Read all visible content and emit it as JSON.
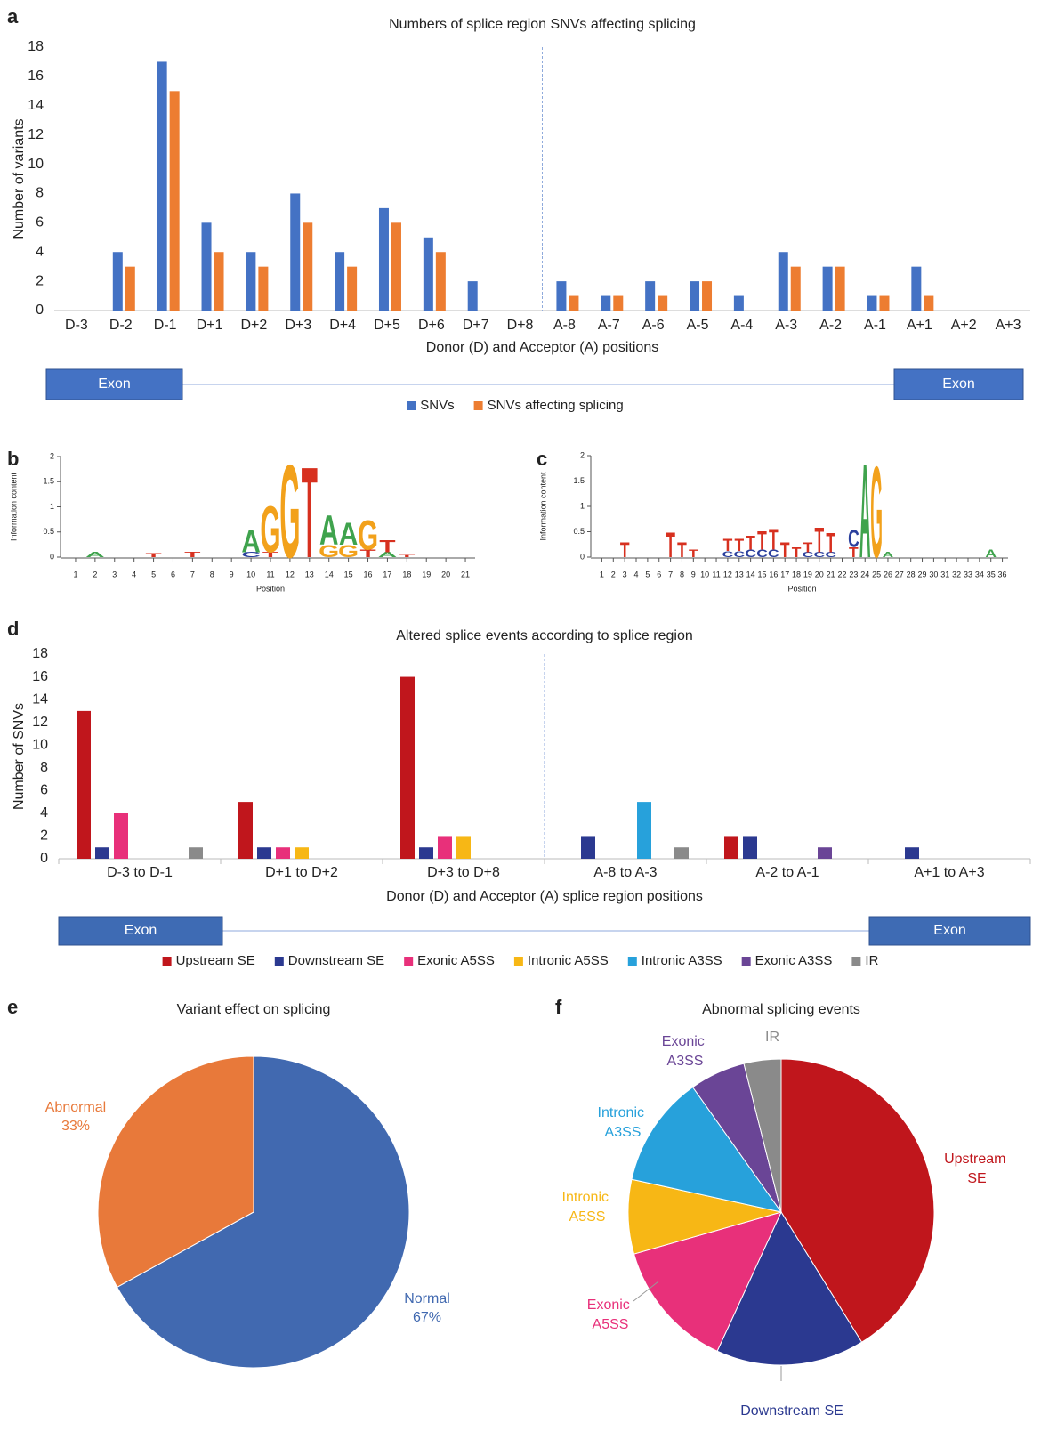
{
  "chart_data": [
    {
      "panel": "a",
      "type": "bar",
      "title": "Numbers of splice region SNVs affecting splicing",
      "xlabel": "Donor (D) and Acceptor (A) positions",
      "ylabel": "Number of variants",
      "categories": [
        "D-3",
        "D-2",
        "D-1",
        "D+1",
        "D+2",
        "D+3",
        "D+4",
        "D+5",
        "D+6",
        "D+7",
        "D+8",
        "A-8",
        "A-7",
        "A-6",
        "A-5",
        "A-4",
        "A-3",
        "A-2",
        "A-1",
        "A+1",
        "A+2",
        "A+3"
      ],
      "series": [
        {
          "name": "SNVs",
          "color": "#4472c4",
          "values": [
            0,
            4,
            17,
            6,
            4,
            8,
            4,
            7,
            5,
            2,
            0,
            2,
            1,
            2,
            2,
            1,
            4,
            3,
            1,
            3,
            0,
            0
          ]
        },
        {
          "name": "SNVs affecting splicing",
          "color": "#ed7d31",
          "values": [
            0,
            3,
            15,
            4,
            3,
            6,
            3,
            6,
            4,
            0,
            0,
            1,
            1,
            1,
            2,
            0,
            3,
            3,
            1,
            1,
            0,
            0
          ]
        }
      ],
      "ylim": [
        0,
        18
      ],
      "yticks": [
        0,
        2,
        4,
        6,
        8,
        10,
        12,
        14,
        16,
        18
      ],
      "exon_labels": [
        "Exon",
        "Exon"
      ]
    },
    {
      "panel": "b",
      "type": "logo",
      "xlabel": "Position",
      "ylabel": "Information content",
      "xlim": [
        0.5,
        21.5
      ],
      "xticks": [
        1,
        2,
        3,
        4,
        5,
        6,
        7,
        8,
        9,
        10,
        11,
        12,
        13,
        14,
        15,
        16,
        17,
        18,
        19,
        20,
        21
      ],
      "ylim": [
        0,
        2
      ],
      "yticks": [
        0,
        0.5,
        1,
        1.5,
        2
      ],
      "letter_colors": {
        "A": "#3fa34d",
        "C": "#2a3f9d",
        "G": "#f2a11b",
        "T": "#d7301f"
      },
      "letters": [
        {
          "position": 2,
          "letter": "A",
          "height": 0.1
        },
        {
          "position": 5,
          "letter": "T",
          "height": 0.08
        },
        {
          "position": 7,
          "letter": "T",
          "height": 0.1
        },
        {
          "position": 10,
          "letter": "C",
          "height": 0.1
        },
        {
          "position": 10,
          "letter": "A",
          "height": 0.45
        },
        {
          "position": 11,
          "letter": "T",
          "height": 0.1
        },
        {
          "position": 11,
          "letter": "G",
          "height": 0.95
        },
        {
          "position": 12,
          "letter": "G",
          "height": 1.9
        },
        {
          "position": 13,
          "letter": "T",
          "height": 1.85
        },
        {
          "position": 14,
          "letter": "G",
          "height": 0.25
        },
        {
          "position": 14,
          "letter": "A",
          "height": 0.6
        },
        {
          "position": 15,
          "letter": "G",
          "height": 0.25
        },
        {
          "position": 15,
          "letter": "A",
          "height": 0.45
        },
        {
          "position": 16,
          "letter": "T",
          "height": 0.15
        },
        {
          "position": 16,
          "letter": "G",
          "height": 0.6
        },
        {
          "position": 17,
          "letter": "A",
          "height": 0.1
        },
        {
          "position": 17,
          "letter": "T",
          "height": 0.25
        },
        {
          "position": 18,
          "letter": "T",
          "height": 0.05
        }
      ]
    },
    {
      "panel": "c",
      "type": "logo",
      "xlabel": "Position",
      "ylabel": "Information content",
      "xlim": [
        0.5,
        36.5
      ],
      "xticks": [
        1,
        2,
        3,
        4,
        5,
        6,
        7,
        8,
        9,
        10,
        11,
        12,
        13,
        14,
        15,
        16,
        17,
        18,
        19,
        20,
        21,
        22,
        23,
        24,
        25,
        26,
        27,
        28,
        29,
        30,
        31,
        32,
        33,
        34,
        35,
        36
      ],
      "ylim": [
        0,
        2
      ],
      "yticks": [
        0,
        0.5,
        1,
        1.5,
        2
      ],
      "letter_colors": {
        "A": "#3fa34d",
        "C": "#2a3f9d",
        "G": "#f2a11b",
        "T": "#d7301f"
      },
      "letters": [
        {
          "position": 3,
          "letter": "T",
          "height": 0.3
        },
        {
          "position": 7,
          "letter": "T",
          "height": 0.5
        },
        {
          "position": 8,
          "letter": "T",
          "height": 0.3
        },
        {
          "position": 9,
          "letter": "T",
          "height": 0.15
        },
        {
          "position": 12,
          "letter": "C",
          "height": 0.12
        },
        {
          "position": 12,
          "letter": "T",
          "height": 0.25
        },
        {
          "position": 13,
          "letter": "C",
          "height": 0.12
        },
        {
          "position": 13,
          "letter": "T",
          "height": 0.25
        },
        {
          "position": 14,
          "letter": "C",
          "height": 0.15
        },
        {
          "position": 14,
          "letter": "T",
          "height": 0.28
        },
        {
          "position": 15,
          "letter": "C",
          "height": 0.15
        },
        {
          "position": 15,
          "letter": "T",
          "height": 0.38
        },
        {
          "position": 16,
          "letter": "C",
          "height": 0.15
        },
        {
          "position": 16,
          "letter": "T",
          "height": 0.42
        },
        {
          "position": 17,
          "letter": "T",
          "height": 0.3
        },
        {
          "position": 18,
          "letter": "T",
          "height": 0.2
        },
        {
          "position": 19,
          "letter": "C",
          "height": 0.1
        },
        {
          "position": 19,
          "letter": "T",
          "height": 0.2
        },
        {
          "position": 20,
          "letter": "C",
          "height": 0.1
        },
        {
          "position": 20,
          "letter": "T",
          "height": 0.5
        },
        {
          "position": 21,
          "letter": "C",
          "height": 0.1
        },
        {
          "position": 21,
          "letter": "T",
          "height": 0.4
        },
        {
          "position": 23,
          "letter": "T",
          "height": 0.2
        },
        {
          "position": 23,
          "letter": "C",
          "height": 0.35
        },
        {
          "position": 24,
          "letter": "A",
          "height": 1.9
        },
        {
          "position": 25,
          "letter": "G",
          "height": 1.85
        },
        {
          "position": 26,
          "letter": "A",
          "height": 0.1
        },
        {
          "position": 35,
          "letter": "A",
          "height": 0.15
        }
      ]
    },
    {
      "panel": "d",
      "type": "bar",
      "title": "Altered splice events according to splice region",
      "xlabel": "Donor (D) and Acceptor (A) splice region positions",
      "ylabel": "Number of SNVs",
      "categories": [
        "D-3 to D-1",
        "D+1 to D+2",
        "D+3 to D+8",
        "A-8 to A-3",
        "A-2 to A-1",
        "A+1 to A+3"
      ],
      "series": [
        {
          "name": "Upstream SE",
          "color": "#c0161c",
          "values": [
            13,
            5,
            16,
            0,
            2,
            0
          ]
        },
        {
          "name": "Downstream SE",
          "color": "#2b3990",
          "values": [
            1,
            1,
            1,
            2,
            2,
            1
          ]
        },
        {
          "name": "Exonic A5SS",
          "color": "#e8307a",
          "values": [
            4,
            1,
            2,
            0,
            0,
            0
          ]
        },
        {
          "name": "Intronic A5SS",
          "color": "#f7b715",
          "values": [
            0,
            1,
            2,
            0,
            0,
            0
          ]
        },
        {
          "name": "Intronic A3SS",
          "color": "#27a1db",
          "values": [
            0,
            0,
            0,
            5,
            0,
            0
          ]
        },
        {
          "name": "Exonic A3SS",
          "color": "#6a4596",
          "values": [
            0,
            0,
            0,
            0,
            1,
            0
          ]
        },
        {
          "name": "IR",
          "color": "#8a8a8a",
          "values": [
            1,
            0,
            0,
            1,
            0,
            0
          ]
        }
      ],
      "ylim": [
        0,
        18
      ],
      "yticks": [
        0,
        2,
        4,
        6,
        8,
        10,
        12,
        14,
        16,
        18
      ],
      "exon_labels": [
        "Exon",
        "Exon"
      ]
    },
    {
      "panel": "e",
      "type": "pie",
      "title": "Variant effect on splicing",
      "categories": [
        "Normal",
        "Abnormal"
      ],
      "values": [
        67,
        33
      ],
      "value_labels": [
        "67%",
        "33%"
      ],
      "colors": [
        "#4169b0",
        "#e8793a"
      ]
    },
    {
      "panel": "f",
      "type": "pie",
      "title": "Abnormal splicing events",
      "categories": [
        "Upstream SE",
        "Downstream SE",
        "Exonic A5SS",
        "Intronic A5SS",
        "Intronic A3SS",
        "Exonic A3SS",
        "IR"
      ],
      "values": [
        21,
        8,
        7,
        4,
        6,
        3,
        2
      ],
      "colors": [
        "#c0161c",
        "#2b3990",
        "#e8307a",
        "#f7b715",
        "#27a1db",
        "#6a4596",
        "#8a8a8a"
      ]
    }
  ]
}
